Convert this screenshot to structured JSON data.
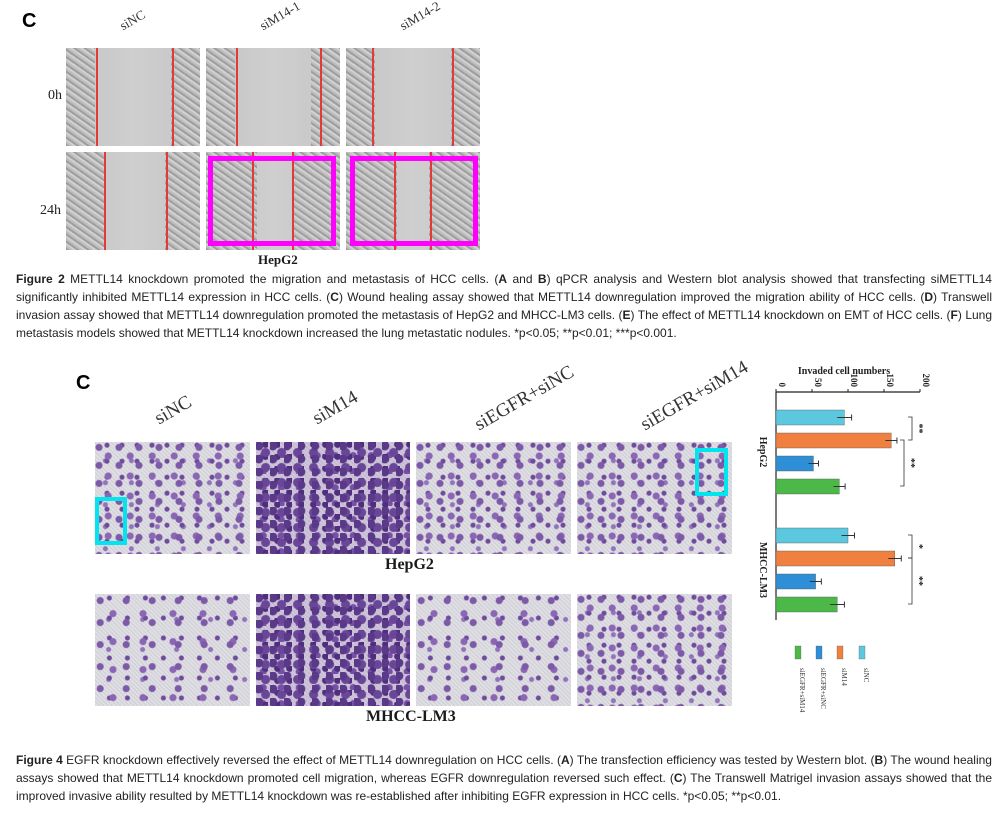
{
  "fig2": {
    "panel_letter": "C",
    "columns": [
      "siNC",
      "siM14-1",
      "siM14-2"
    ],
    "rows": [
      "0h",
      "24h"
    ],
    "cell_line": "HepG2",
    "caption": {
      "fig_label": "Figure 2",
      "t1": " METTL14 knockdown promoted the migration and metastasis of HCC cells. (",
      "A": "A",
      "and": " and ",
      "B": "B",
      "t2": ") qPCR analysis and Western blot analysis showed that transfecting siMETTL14 significantly inhibited METTL14 expression in HCC cells. (",
      "C": "C",
      "t3": ") Wound healing assay showed that METTL14 downregulation improved the migration ability of HCC cells. (",
      "D": "D",
      "t4": ") Transwell invasion assay showed that METTL14 downregulation promoted the metastasis of HepG2 and MHCC-LM3 cells. (",
      "E": "E",
      "t5": ") The effect of METTL14 knockdown on EMT of HCC cells. (",
      "F": "F",
      "t6": ") Lung metastasis models showed that METTL14 knockdown increased the lung metastatic nodules. *p<0.05; **p<0.01; ***p<0.001."
    }
  },
  "fig4": {
    "panel_letter": "C",
    "columns": [
      "siNC",
      "siM14",
      "siEGFR+siNC",
      "siEGFR+siM14"
    ],
    "rows": [
      "HepG2",
      "MHCC-LM3"
    ],
    "caption": {
      "fig_label": "Figure 4",
      "t1": " EGFR knockdown effectively reversed the effect of METTL14 downregulation on HCC cells. (",
      "A": "A",
      "t2": ") The transfection efficiency was tested by Western blot. (",
      "B": "B",
      "t3": ") The wound healing assays showed that METTL14 knockdown promoted cell migration, whereas EGFR downregulation reversed such effect. (",
      "C": "C",
      "t4": ") The Transwell Matrigel invasion assays showed that the improved invasive ability resulted by METTL14 knockdown was re-established after inhibiting EGFR expression in HCC cells. *p<0.05; **p<0.01."
    }
  },
  "chart_data": {
    "type": "bar",
    "orientation": "horizontal",
    "title": "Invaded cell numbers",
    "categories": [
      "HepG2",
      "MHCC-LM3"
    ],
    "series": [
      {
        "name": "siNC",
        "color": "#5bc8e0",
        "values": [
          95,
          100
        ],
        "errors": [
          10,
          9
        ]
      },
      {
        "name": "siM14",
        "color": "#f08040",
        "values": [
          160,
          165
        ],
        "errors": [
          8,
          9
        ]
      },
      {
        "name": "siEGFR+siNC",
        "color": "#2f8fd6",
        "values": [
          52,
          55
        ],
        "errors": [
          7,
          8
        ]
      },
      {
        "name": "siEGFR+siM14",
        "color": "#4cb848",
        "values": [
          88,
          85
        ],
        "errors": [
          8,
          10
        ]
      }
    ],
    "xlim": [
      0,
      200
    ],
    "ticks": [
      "0",
      "50",
      "100",
      "150",
      "200"
    ],
    "significance": [
      "**",
      "**",
      "*",
      "**"
    ],
    "legend_position": "bottom"
  }
}
